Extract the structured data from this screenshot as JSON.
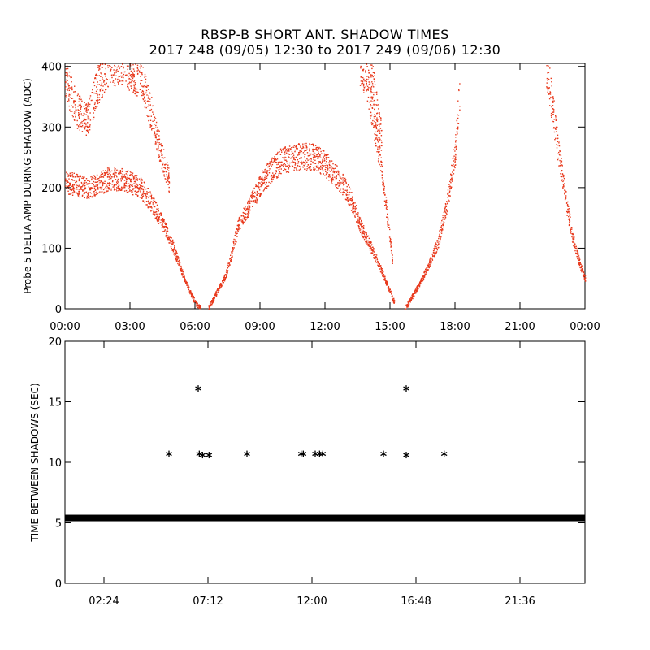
{
  "title_line1": "RBSP-B SHORT ANT. SHADOW TIMES",
  "title_line2": "2017 248 (09/05) 12:30 to 2017 249 (09/06) 12:30",
  "colors": {
    "top_points": "#e8391c",
    "bottom_points": "#000000"
  },
  "chart_data": [
    {
      "type": "scatter",
      "ylabel": "Probe 5 DELTA AMP DURING SHADOW (ADC)",
      "xlim_hours": [
        0,
        24
      ],
      "ylim": [
        0,
        405
      ],
      "x_ticks_hours": [
        0,
        3,
        6,
        9,
        12,
        15,
        18,
        21,
        24
      ],
      "x_tick_labels": [
        "00:00",
        "03:00",
        "06:00",
        "09:00",
        "12:00",
        "15:00",
        "18:00",
        "21:00",
        "00:00"
      ],
      "y_ticks": [
        0,
        100,
        200,
        300,
        400
      ],
      "y_tick_labels": [
        "0",
        "100",
        "200",
        "300",
        "400"
      ],
      "series": [
        {
          "values_hours": [
            0,
            0.5,
            1,
            1.5,
            2,
            2.5,
            3,
            3.5,
            4,
            4.3,
            4.6,
            4.9,
            5.2,
            5.5,
            5.8,
            6.05,
            6.25
          ],
          "values": [
            210,
            205,
            200,
            205,
            215,
            215,
            210,
            200,
            175,
            155,
            135,
            110,
            80,
            50,
            25,
            8,
            2
          ]
        },
        {
          "values_hours": [
            6.6,
            6.8,
            7.1,
            7.4,
            7.7,
            8.0,
            8.5,
            9.0,
            9.5,
            10.0,
            10.5,
            11.0,
            11.5,
            12.0,
            12.5,
            13.0,
            13.3,
            13.6,
            14.0,
            14.4,
            14.8,
            15.2
          ],
          "values": [
            2,
            15,
            35,
            55,
            95,
            140,
            170,
            205,
            230,
            245,
            250,
            252,
            250,
            240,
            220,
            195,
            170,
            140,
            110,
            80,
            45,
            10
          ]
        },
        {
          "values_hours": [
            15.7,
            16.0,
            16.4,
            16.8,
            17.2,
            17.6,
            18.0,
            18.2
          ],
          "values": [
            2,
            20,
            45,
            75,
            110,
            170,
            260,
            360
          ]
        },
        {
          "values_hours": [
            0.0,
            0.5,
            1.0,
            1.5,
            2.0,
            2.5,
            3.0,
            3.5,
            4.0,
            4.4,
            4.8
          ],
          "values": [
            380,
            330,
            310,
            370,
            405,
            405,
            395,
            380,
            320,
            260,
            210
          ]
        },
        {
          "values_hours": [
            13.6,
            13.9,
            14.2,
            14.5,
            14.8,
            15.1
          ],
          "values": [
            405,
            380,
            320,
            250,
            170,
            80
          ]
        },
        {
          "values_hours": [
            14.0,
            14.3,
            14.6
          ],
          "values": [
            405,
            350,
            280
          ]
        },
        {
          "values_hours": [
            22.2,
            22.5,
            22.8,
            23.1,
            23.4,
            23.7,
            24.0
          ],
          "values": [
            405,
            330,
            250,
            180,
            120,
            80,
            50
          ]
        }
      ]
    },
    {
      "type": "scatter",
      "ylabel": "TIME BETWEEN SHADOWS (SEC)",
      "xlim_hours": [
        0,
        24
      ],
      "ylim": [
        0,
        20
      ],
      "x_ticks_hours": [
        1.8,
        6.6,
        11.4,
        16.2,
        21.0
      ],
      "x_tick_labels": [
        "02:24",
        "07:12",
        "12:00",
        "16:48",
        "21:36"
      ],
      "y_ticks": [
        0,
        5,
        10,
        15,
        20
      ],
      "y_tick_labels": [
        "0",
        "5",
        "10",
        "15",
        "20"
      ],
      "baseline": {
        "x_range_hours": [
          0,
          24
        ],
        "y": 5.4
      },
      "outliers": [
        {
          "x": 4.8,
          "y": 10.7
        },
        {
          "x": 6.15,
          "y": 16.1
        },
        {
          "x": 6.2,
          "y": 10.7
        },
        {
          "x": 6.35,
          "y": 10.6
        },
        {
          "x": 6.65,
          "y": 10.6
        },
        {
          "x": 8.4,
          "y": 10.7
        },
        {
          "x": 10.9,
          "y": 10.7
        },
        {
          "x": 11.0,
          "y": 10.7
        },
        {
          "x": 11.55,
          "y": 10.7
        },
        {
          "x": 11.75,
          "y": 10.7
        },
        {
          "x": 11.9,
          "y": 10.7
        },
        {
          "x": 14.7,
          "y": 10.7
        },
        {
          "x": 15.75,
          "y": 16.1
        },
        {
          "x": 15.75,
          "y": 10.6
        },
        {
          "x": 17.5,
          "y": 10.7
        }
      ]
    }
  ]
}
